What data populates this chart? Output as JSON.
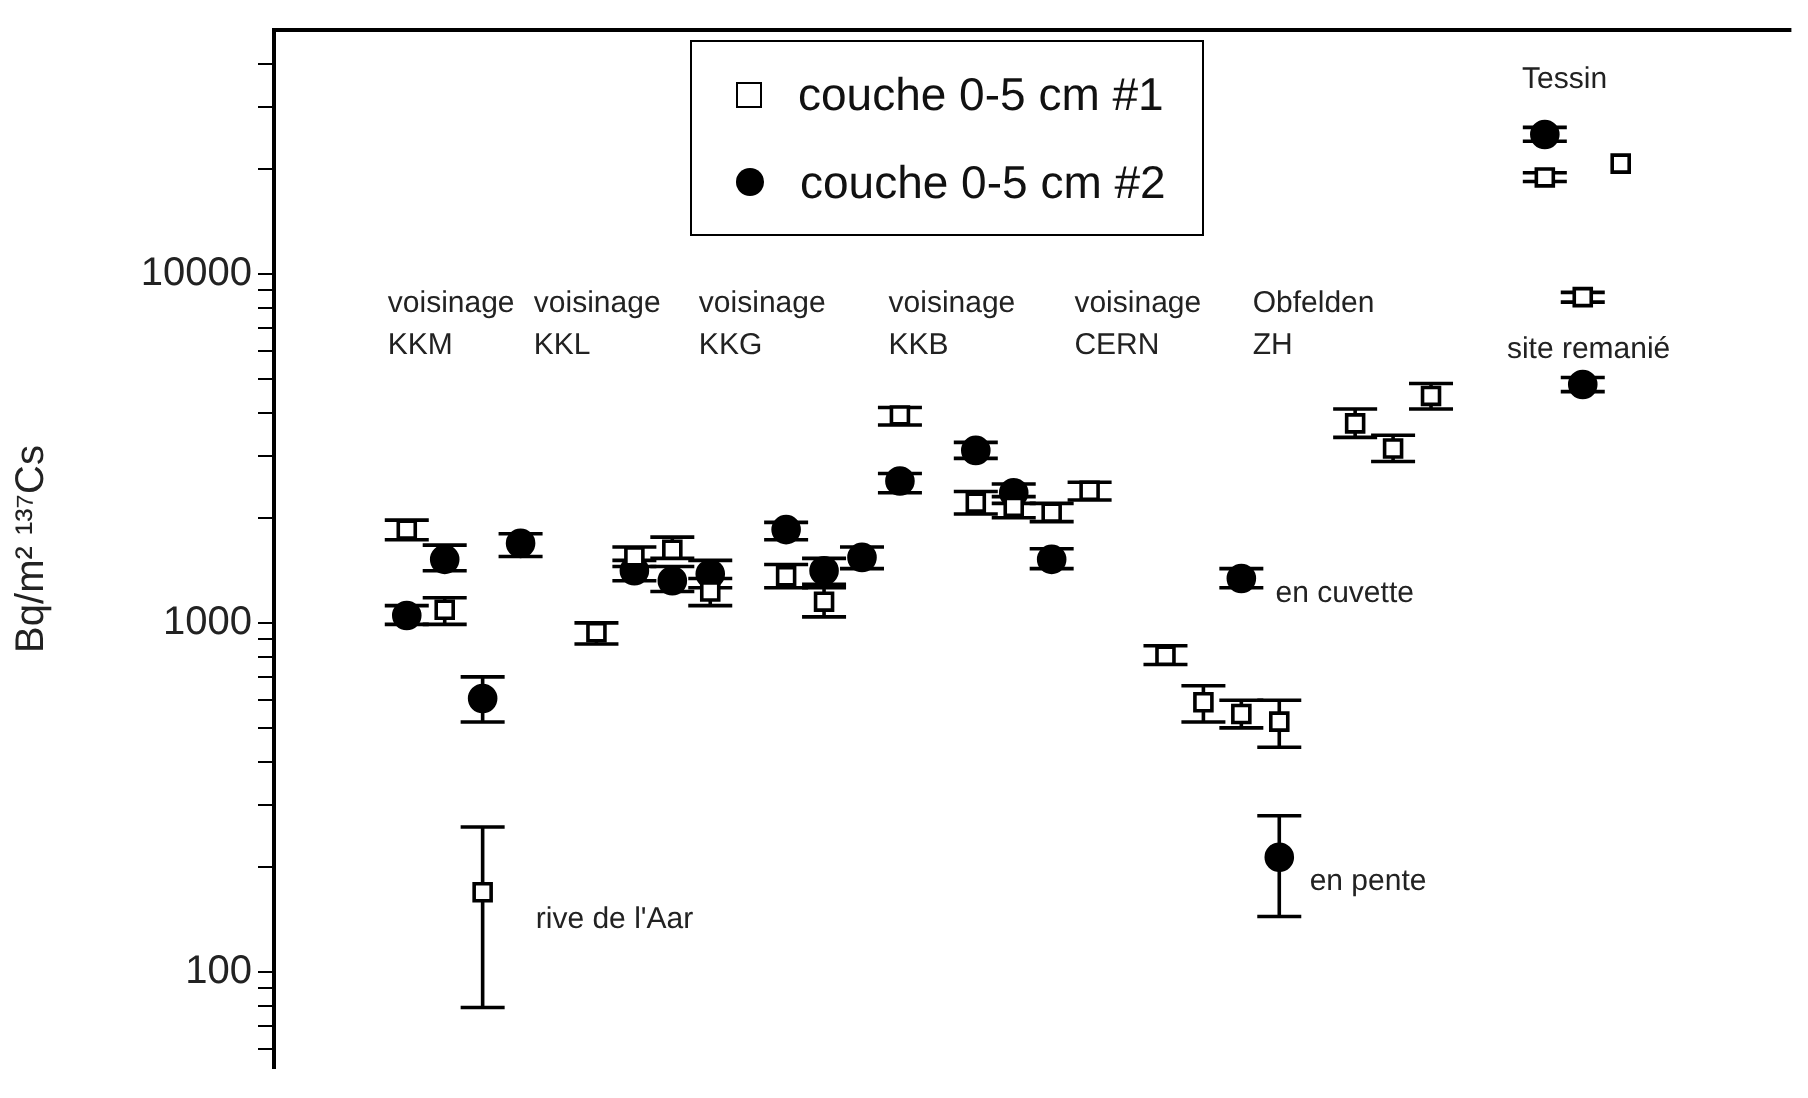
{
  "chart_data": {
    "type": "scatter",
    "ylabel": "Bq/m² ¹³⁷Cs",
    "log": "y",
    "grid": false,
    "legend": "top",
    "categories": [
      null,
      null,
      null,
      null,
      null,
      null,
      null,
      null,
      null,
      null,
      null,
      null,
      null,
      null,
      null,
      null,
      null,
      null,
      null,
      null,
      null,
      null,
      null,
      null,
      null,
      null,
      null,
      null,
      null,
      null,
      null,
      null,
      null,
      null,
      null,
      null,
      null,
      null,
      null,
      null
    ],
    "ylim": [
      53,
      50000
    ],
    "yticks": [
      {
        "value": 60,
        "label": null
      },
      {
        "value": 70,
        "label": null
      },
      {
        "value": 80,
        "label": null
      },
      {
        "value": 90,
        "label": null
      },
      100,
      {
        "value": 200,
        "label": null
      },
      {
        "value": 300,
        "label": null
      },
      {
        "value": 400,
        "label": null
      },
      {
        "value": 500,
        "label": null
      },
      {
        "value": 600,
        "label": null
      },
      {
        "value": 700,
        "label": null
      },
      {
        "value": 800,
        "label": null
      },
      {
        "value": 900,
        "label": null
      },
      1000,
      {
        "value": 2000,
        "label": null
      },
      {
        "value": 3000,
        "label": null
      },
      {
        "value": 4000,
        "label": null
      },
      {
        "value": 5000,
        "label": null
      },
      {
        "value": 6000,
        "label": null
      },
      {
        "value": 7000,
        "label": null
      },
      {
        "value": 8000,
        "label": null
      },
      {
        "value": 9000,
        "label": null
      },
      10000,
      {
        "value": 20000,
        "label": null
      },
      {
        "value": 30000,
        "label": null
      },
      {
        "value": 40000,
        "label": null
      }
    ],
    "series": [
      {
        "name": "couche 0-5 cm #1",
        "color": "#000000",
        "marker": "square",
        "values": [
          null,
          null,
          null,
          1850,
          1090,
          169,
          null,
          null,
          940,
          1550,
          1620,
          1230,
          null,
          1360,
          1150,
          null,
          3930,
          null,
          2210,
          2150,
          2070,
          2390,
          null,
          805,
          592,
          548,
          521,
          null,
          3730,
          3160,
          4470,
          null,
          null,
          18900,
          8580,
          20700,
          null,
          null,
          null,
          null
        ],
        "errors": [
          null,
          null,
          null,
          [
            1730,
            1970
          ],
          [
            990,
            1180
          ],
          [
            79,
            260
          ],
          null,
          null,
          [
            870,
            1000
          ],
          [
            1450,
            1650
          ],
          [
            1530,
            1760
          ],
          [
            1120,
            1340
          ],
          null,
          [
            1260,
            1470
          ],
          [
            1040,
            1260
          ],
          null,
          [
            3690,
            4140
          ],
          null,
          [
            2050,
            2380
          ],
          [
            2000,
            2300
          ],
          [
            1950,
            2200
          ],
          [
            2250,
            2530
          ],
          null,
          [
            760,
            860
          ],
          [
            520,
            660
          ],
          [
            500,
            600
          ],
          [
            440,
            600
          ],
          null,
          [
            3400,
            4100
          ],
          [
            2900,
            3450
          ],
          [
            4100,
            4850
          ],
          null,
          null,
          [
            18400,
            19500
          ],
          [
            8300,
            8850
          ],
          null,
          null,
          null,
          null,
          null
        ]
      },
      {
        "name": "couche 0-5 cm #2",
        "color": "#000000",
        "marker": "circle",
        "values": [
          null,
          null,
          null,
          1050,
          1520,
          607,
          1690,
          null,
          null,
          1410,
          1320,
          1380,
          null,
          1850,
          1410,
          1540,
          2550,
          null,
          3120,
          2360,
          1520,
          null,
          null,
          null,
          null,
          1340,
          213,
          null,
          null,
          null,
          null,
          null,
          null,
          25100,
          4820,
          null,
          null,
          null,
          null,
          null
        ],
        "errors": [
          null,
          null,
          null,
          [
            990,
            1120
          ],
          [
            1410,
            1670
          ],
          [
            520,
            700
          ],
          [
            1550,
            1800
          ],
          null,
          null,
          [
            1320,
            1510
          ],
          [
            1230,
            1450
          ],
          [
            1260,
            1510
          ],
          null,
          [
            1730,
            1940
          ],
          [
            1290,
            1530
          ],
          [
            1430,
            1650
          ],
          [
            2360,
            2680
          ],
          null,
          [
            2960,
            3290
          ],
          [
            2200,
            2500
          ],
          [
            1430,
            1630
          ],
          null,
          null,
          null,
          null,
          [
            1260,
            1430
          ],
          [
            144,
            280
          ],
          null,
          null,
          null,
          null,
          null,
          null,
          [
            24000,
            26300
          ],
          [
            4600,
            5050
          ],
          null,
          null,
          null,
          null,
          null
        ]
      }
    ],
    "annotations": [
      "voisinage\nKKM",
      "voisinage\nKKL",
      "voisinage\nKKG",
      "voisinage\nKKB",
      "voisinage\nCERN",
      "Obfelden\nZH",
      "Tessin",
      "site remanié",
      "rive de l'Aar",
      "en cuvette",
      "en pente"
    ]
  }
}
